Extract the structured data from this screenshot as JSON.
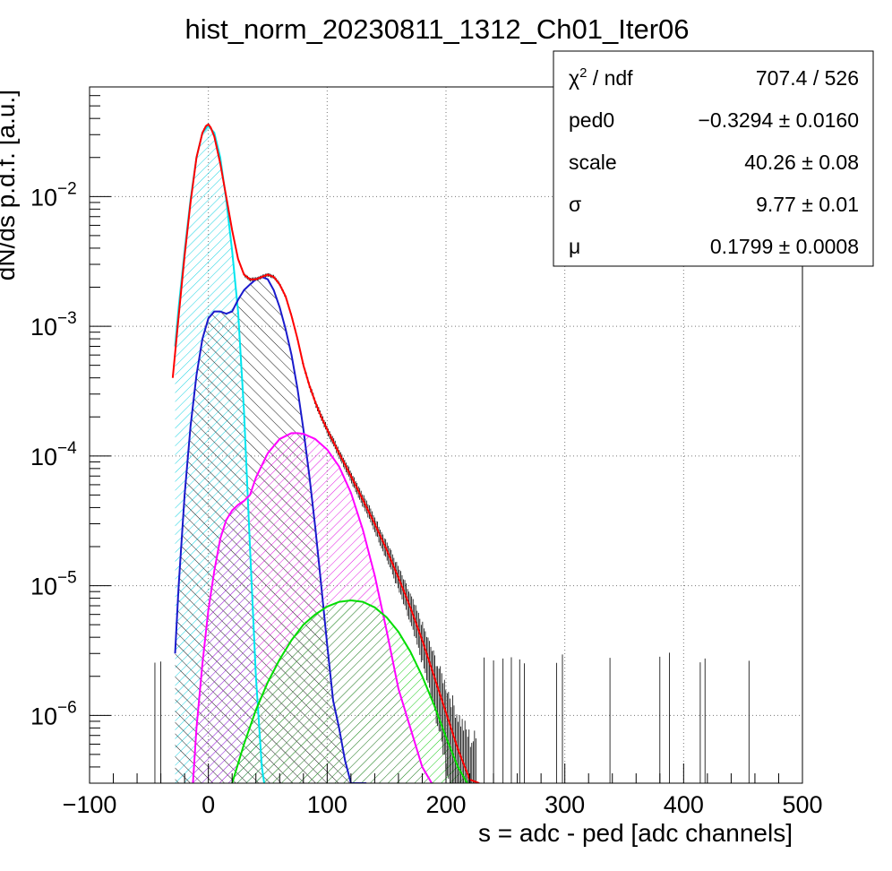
{
  "chart_data": {
    "type": "line",
    "title": "hist_norm_20230811_1312_Ch01_Iter06",
    "xlabel": "s = adc - ped [adc channels]",
    "ylabel": "dN/ds p.d.f. [a.u.]",
    "xlim": [
      -100,
      500
    ],
    "ylim": [
      3e-07,
      0.07
    ],
    "yscale": "log",
    "grid": true,
    "x_ticks": [
      {
        "value": -100,
        "label": "−100"
      },
      {
        "value": 0,
        "label": "0"
      },
      {
        "value": 100,
        "label": "100"
      },
      {
        "value": 200,
        "label": "200"
      },
      {
        "value": 300,
        "label": "300"
      },
      {
        "value": 400,
        "label": "400"
      },
      {
        "value": 500,
        "label": "500"
      }
    ],
    "y_ticks": [
      {
        "value": 0.01,
        "base": "10",
        "exp": "−2"
      },
      {
        "value": 0.001,
        "base": "10",
        "exp": "−3"
      },
      {
        "value": 0.0001,
        "base": "10",
        "exp": "−4"
      },
      {
        "value": 1e-05,
        "base": "10",
        "exp": "−5"
      },
      {
        "value": 1e-06,
        "base": "10",
        "exp": "−6"
      }
    ],
    "stats_box": {
      "placement": "top-right",
      "rows": [
        {
          "label": "χ",
          "sup": "2",
          "label_rest": " / ndf",
          "value": "707.4 / 526"
        },
        {
          "label": "ped0",
          "sup": "",
          "label_rest": "",
          "value": "−0.3294 ± 0.0160"
        },
        {
          "label": "scale",
          "sup": "",
          "label_rest": "",
          "value": "40.26 ± 0.08"
        },
        {
          "label": "σ",
          "sup": "",
          "label_rest": "",
          "value": "9.77 ± 0.01"
        },
        {
          "label": "μ",
          "sup": "",
          "label_rest": "",
          "value": "0.1799 ± 0.0008"
        }
      ]
    },
    "series": [
      {
        "color": "#ff0000",
        "fill": "none",
        "x": [
          -30,
          -25,
          -20,
          -15,
          -10,
          -5,
          -2,
          0,
          2,
          5,
          10,
          15,
          20,
          25,
          30,
          35,
          40,
          45,
          50,
          55,
          60,
          65,
          70,
          75,
          80,
          85,
          90,
          95,
          100,
          110,
          120,
          130,
          140,
          150,
          160,
          170,
          180,
          190,
          200,
          210,
          220,
          228
        ],
        "y": [
          0.0004,
          0.0012,
          0.0035,
          0.009,
          0.02,
          0.031,
          0.035,
          0.036,
          0.034,
          0.029,
          0.018,
          0.01,
          0.0055,
          0.0033,
          0.0025,
          0.0023,
          0.0023,
          0.0024,
          0.0025,
          0.0024,
          0.0021,
          0.0017,
          0.0012,
          0.0008,
          0.0005,
          0.00035,
          0.00026,
          0.0002,
          0.00016,
          0.000105,
          7e-05,
          4.6e-05,
          3e-05,
          1.9e-05,
          1.15e-05,
          6.8e-06,
          3.8e-06,
          2e-06,
          1.05e-06,
          5.5e-07,
          3.2e-07,
          3e-07
        ]
      },
      {
        "color": "#00e5ee",
        "fill": "#00e5ee",
        "x": [
          -28,
          -25,
          -20,
          -15,
          -10,
          -5,
          0,
          5,
          10,
          15,
          20,
          25,
          30,
          35,
          40,
          45,
          47
        ],
        "y": [
          0.0007,
          0.0014,
          0.0038,
          0.0095,
          0.02,
          0.031,
          0.035,
          0.031,
          0.02,
          0.0095,
          0.0038,
          0.0013,
          0.00022,
          2e-05,
          2e-06,
          4e-07,
          3e-07
        ]
      },
      {
        "color": "#1a1acc",
        "fill": "#000000",
        "x": [
          -28,
          -25,
          -20,
          -15,
          -10,
          -5,
          0,
          5,
          10,
          15,
          20,
          25,
          30,
          35,
          40,
          45,
          50,
          55,
          60,
          65,
          70,
          75,
          80,
          85,
          90,
          95,
          100,
          105,
          110,
          115,
          120,
          125,
          130,
          133
        ],
        "y": [
          3e-06,
          1e-05,
          5e-05,
          0.00017,
          0.00042,
          0.0008,
          0.00115,
          0.0013,
          0.0013,
          0.00125,
          0.0013,
          0.0016,
          0.0019,
          0.0021,
          0.0023,
          0.0024,
          0.0023,
          0.0019,
          0.0014,
          0.00095,
          0.0006,
          0.00033,
          0.00016,
          7e-05,
          2.8e-05,
          1e-05,
          3.5e-06,
          1.3e-06,
          8e-07,
          4.5e-07,
          3e-07,
          3e-07,
          3e-07,
          3e-07
        ]
      },
      {
        "color": "#ff00ff",
        "fill": "#ff00ff",
        "x": [
          -13,
          -10,
          -5,
          0,
          5,
          10,
          15,
          20,
          25,
          30,
          35,
          40,
          50,
          60,
          70,
          75,
          80,
          90,
          100,
          110,
          120,
          130,
          140,
          150,
          160,
          170,
          180,
          188
        ],
        "y": [
          3e-07,
          8e-07,
          2.5e-06,
          6.5e-06,
          1.3e-05,
          2.3e-05,
          3.2e-05,
          3.8e-05,
          4.2e-05,
          4.5e-05,
          5e-05,
          6.8e-05,
          0.000105,
          0.000135,
          0.00015,
          0.00015,
          0.000148,
          0.000135,
          0.000112,
          8.3e-05,
          5.2e-05,
          2.7e-05,
          1.2e-05,
          4.5e-06,
          1.6e-06,
          8e-07,
          4e-07,
          3e-07
        ]
      },
      {
        "color": "#00dd00",
        "fill": "#00dd00",
        "x": [
          20,
          30,
          40,
          50,
          60,
          70,
          80,
          90,
          100,
          110,
          120,
          130,
          140,
          150,
          160,
          170,
          180,
          190,
          200,
          210,
          218
        ],
        "y": [
          3e-07,
          6e-07,
          1.1e-06,
          1.8e-06,
          2.7e-06,
          3.8e-06,
          5e-06,
          6e-06,
          6.9e-06,
          7.5e-06,
          7.7e-06,
          7.5e-06,
          6.8e-06,
          5.7e-06,
          4.4e-06,
          3.1e-06,
          2e-06,
          1.2e-06,
          6.8e-07,
          4e-07,
          3e-07
        ]
      }
    ]
  }
}
